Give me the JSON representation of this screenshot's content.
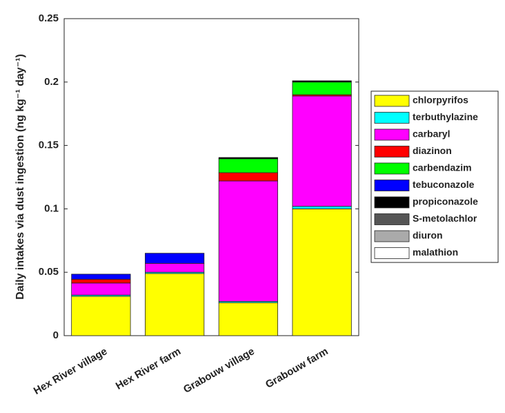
{
  "chart_data": {
    "type": "stacked_bar",
    "y_label": "Daily intakes via dust ingestion (ng kg⁻¹ day⁻¹)",
    "categories": [
      "Hex River village",
      "Hex River farm",
      "Grabouw village",
      "Grabouw farm"
    ],
    "series": [
      {
        "name": "chlorpyrifos",
        "color": "#ffff00",
        "values": [
          0.031,
          0.049,
          0.026,
          0.1
        ]
      },
      {
        "name": "terbuthylazine",
        "color": "#00ffff",
        "values": [
          0.001,
          0.001,
          0.001,
          0.002
        ]
      },
      {
        "name": "carbaryl",
        "color": "#ff00ff",
        "values": [
          0.0095,
          0.007,
          0.095,
          0.087
        ]
      },
      {
        "name": "diazinon",
        "color": "#ff0000",
        "values": [
          0.003,
          0,
          0.0065,
          0.001
        ]
      },
      {
        "name": "carbendazim",
        "color": "#00ff00",
        "values": [
          0,
          0,
          0.011,
          0.01
        ]
      },
      {
        "name": "tebuconazole",
        "color": "#0000ff",
        "values": [
          0.004,
          0.008,
          0,
          0
        ]
      },
      {
        "name": "propiconazole",
        "color": "#000000",
        "values": [
          0,
          0,
          0.001,
          0.001
        ]
      },
      {
        "name": "S-metolachlor",
        "color": "#555555",
        "values": [
          0,
          0,
          0,
          0
        ]
      },
      {
        "name": "diuron",
        "color": "#aaaaaa",
        "values": [
          0,
          0,
          0,
          0
        ]
      },
      {
        "name": "malathion",
        "color": "#ffffff",
        "values": [
          0,
          0,
          0,
          0
        ]
      }
    ],
    "ylim": [
      0,
      0.25
    ],
    "yticks": [
      0,
      0.05,
      0.1,
      0.15,
      0.2,
      0.25
    ],
    "legend": "right"
  }
}
